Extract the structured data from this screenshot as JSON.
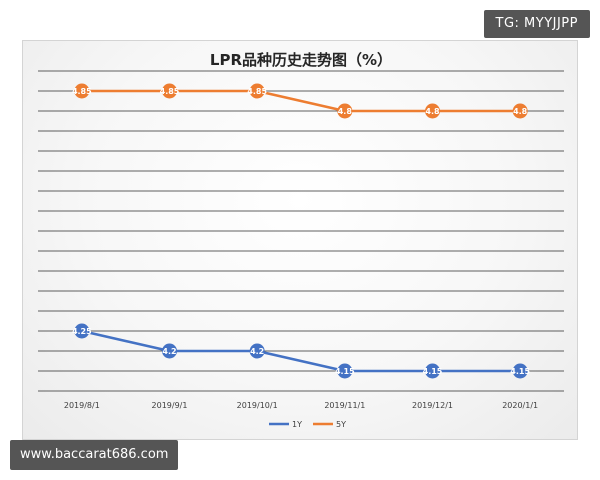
{
  "watermarks": {
    "top_right": "TG: MYYJJPP",
    "bottom_left": "www.baccarat686.com"
  },
  "colors": {
    "series_1y": "#4472c4",
    "series_5y": "#ed7d31",
    "grid": "#2b2b2b",
    "tick_text": "#404040"
  },
  "chart_data": {
    "type": "line",
    "title": "LPR品种历史走势图（%）",
    "xlabel": "",
    "ylabel": "",
    "categories": [
      "2019/8/1",
      "2019/9/1",
      "2019/10/1",
      "2019/11/1",
      "2019/12/1",
      "2020/1/1"
    ],
    "series": [
      {
        "name": "1Y",
        "color": "#4472c4",
        "values": [
          4.25,
          4.2,
          4.2,
          4.15,
          4.15,
          4.15
        ],
        "labels": [
          "4.25",
          "4.2",
          "4.2",
          "4.15",
          "4.15",
          "4.15"
        ]
      },
      {
        "name": "5Y",
        "color": "#ed7d31",
        "values": [
          4.85,
          4.85,
          4.85,
          4.8,
          4.8,
          4.8
        ],
        "labels": [
          "4.85",
          "4.85",
          "4.85",
          "4.8",
          "4.8",
          "4.8"
        ]
      }
    ],
    "ylim": [
      4.1,
      4.9
    ],
    "y_gridline_step": 0.05,
    "y_tick_labels_shown": false,
    "grid": true,
    "legend": "bottom",
    "data_labels": true
  }
}
